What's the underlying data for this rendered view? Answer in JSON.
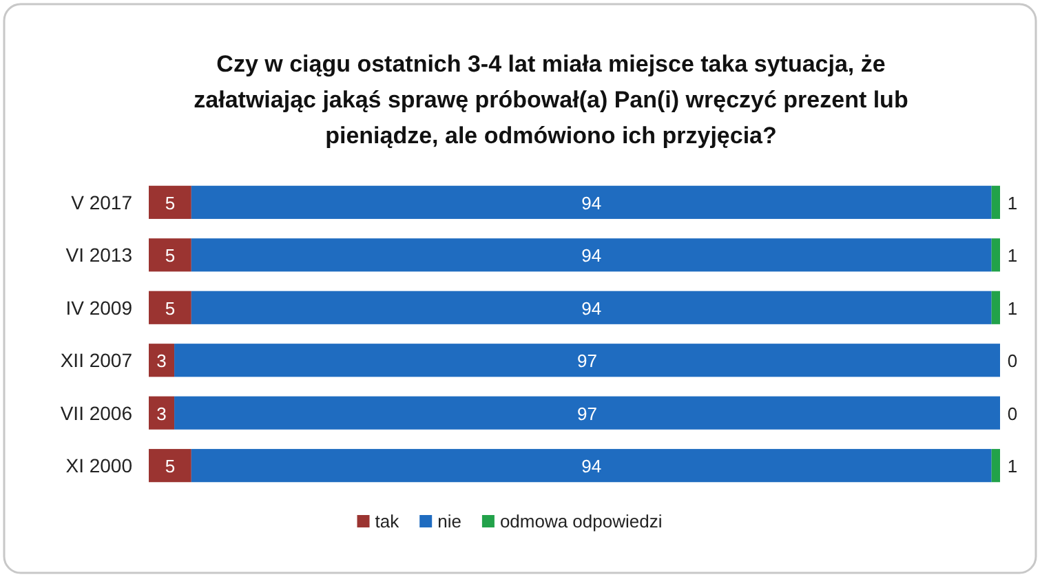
{
  "chart_data": {
    "type": "bar",
    "orientation": "horizontal",
    "stacked": true,
    "title": "Czy w ciągu ostatnich 3-4 lat miała miejsce taka sytuacja, że załatwiając jakąś sprawę próbował(a) Pan(i) wręczyć prezent lub pieniądze, ale odmówiono ich przyjęcia?",
    "categories": [
      "V 2017",
      "VI 2013",
      "IV 2009",
      "XII 2007",
      "VII 2006",
      "XI 2000"
    ],
    "series": [
      {
        "name": "tak",
        "color": "#9b3431",
        "values": [
          5,
          5,
          5,
          3,
          3,
          5
        ]
      },
      {
        "name": "nie",
        "color": "#1f6cc0",
        "values": [
          94,
          94,
          94,
          97,
          97,
          94
        ]
      },
      {
        "name": "odmowa odpowiedzi",
        "color": "#22a24a",
        "values": [
          1,
          1,
          1,
          0,
          0,
          1
        ]
      }
    ],
    "data_labels": true,
    "legend": "bottom"
  }
}
